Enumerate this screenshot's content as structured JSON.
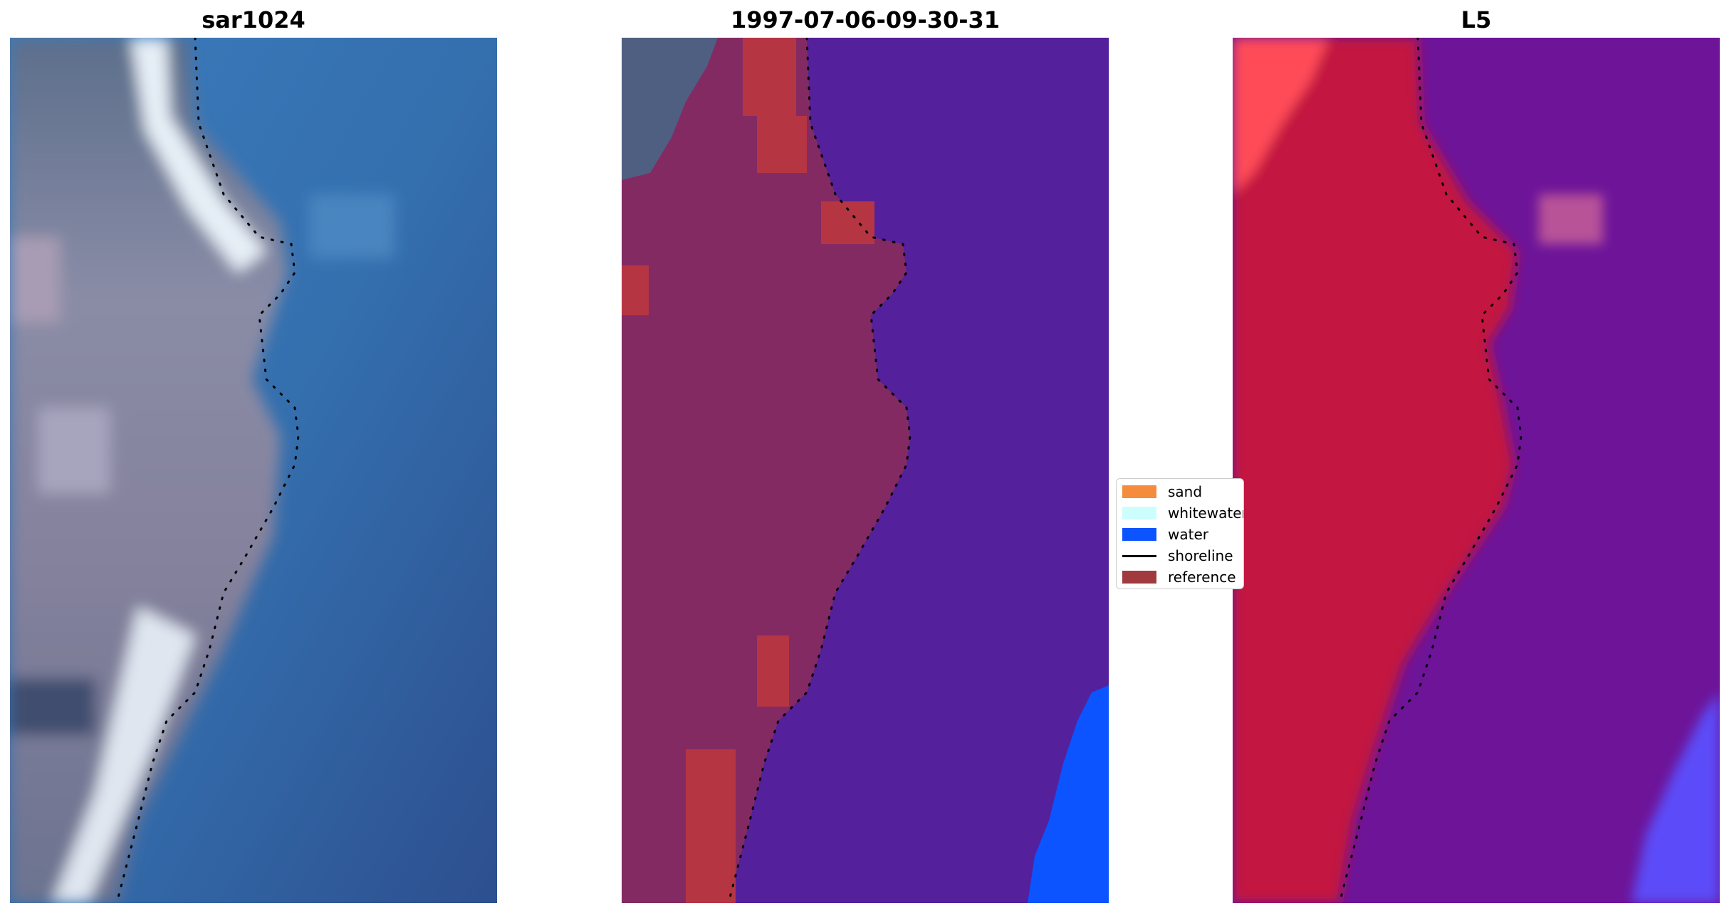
{
  "panels": [
    {
      "title": "sar1024"
    },
    {
      "title": "1997-07-06-09-30-31"
    },
    {
      "title": "L5"
    }
  ],
  "legend": {
    "items": [
      {
        "label": "sand",
        "color": "#f58b3c",
        "kind": "patch"
      },
      {
        "label": "whitewater",
        "color": "#ccfefe",
        "kind": "patch"
      },
      {
        "label": "water",
        "color": "#0b54ff",
        "kind": "patch"
      },
      {
        "label": "shoreline",
        "color": "#000000",
        "kind": "line"
      },
      {
        "label": "reference",
        "color": "#a03a3f",
        "kind": "patch"
      }
    ]
  },
  "colors": {
    "rgb_land": "#7f7f9f",
    "rgb_whitewash": "#e6eef6",
    "rgb_water": "#3670ae",
    "class_land": "#842a63",
    "class_water": "#54209b",
    "class_reference": "#b63543",
    "l5_land": "#c3133f",
    "l5_water": "#6d1499",
    "l5_water_blue": "#5b4bf8"
  }
}
